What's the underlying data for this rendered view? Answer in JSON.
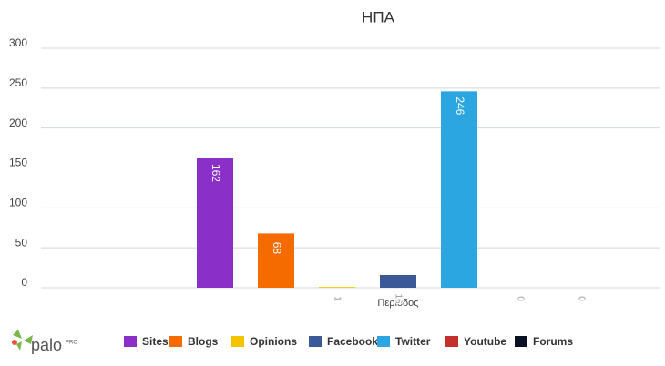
{
  "chart_data": {
    "type": "bar",
    "title": "ΗΠΑ",
    "categories": [
      "Περίοδος"
    ],
    "series": [
      {
        "name": "Sites",
        "color": "#8b2fc9",
        "values": [
          162
        ]
      },
      {
        "name": "Blogs",
        "color": "#f56b00",
        "values": [
          68
        ]
      },
      {
        "name": "Opinions",
        "color": "#f2c500",
        "values": [
          1
        ]
      },
      {
        "name": "Facebook",
        "color": "#3b5998",
        "values": [
          16
        ]
      },
      {
        "name": "Twitter",
        "color": "#2ca6e0",
        "values": [
          246
        ]
      },
      {
        "name": "Youtube",
        "color": "#c4302b",
        "values": [
          0
        ]
      },
      {
        "name": "Forums",
        "color": "#0a0f24",
        "values": [
          0
        ]
      }
    ],
    "ylim": [
      0,
      300
    ],
    "yticks": [
      0,
      50,
      100,
      150,
      200,
      250,
      300
    ],
    "grid": true
  },
  "logo": {
    "name": "palo",
    "badge": "PRO"
  }
}
